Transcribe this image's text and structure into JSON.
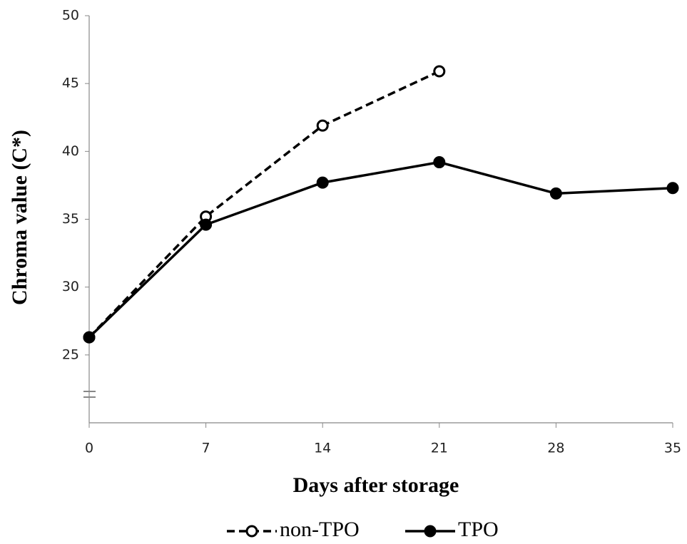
{
  "chart_data": {
    "type": "line",
    "x_label": "Days after storage",
    "y_label": "Chroma value (C*)",
    "x": [
      0,
      7,
      14,
      21,
      28,
      35
    ],
    "xlim": [
      0,
      35
    ],
    "xticks": [
      0,
      7,
      14,
      21,
      28,
      35
    ],
    "ylim": [
      20,
      50
    ],
    "yticks": [
      25,
      30,
      35,
      40,
      45,
      50
    ],
    "legend": "bottom",
    "series": [
      {
        "name": "non-TPO",
        "color": "#000000",
        "line_style": "dashed",
        "marker_fill": "#ffffff",
        "values": [
          26.3,
          35.2,
          41.9,
          45.9,
          null,
          null
        ]
      },
      {
        "name": "TPO",
        "color": "#000000",
        "line_style": "solid",
        "marker_fill": "#000000",
        "values": [
          26.3,
          34.6,
          37.7,
          39.2,
          36.9,
          37.3
        ]
      }
    ]
  }
}
